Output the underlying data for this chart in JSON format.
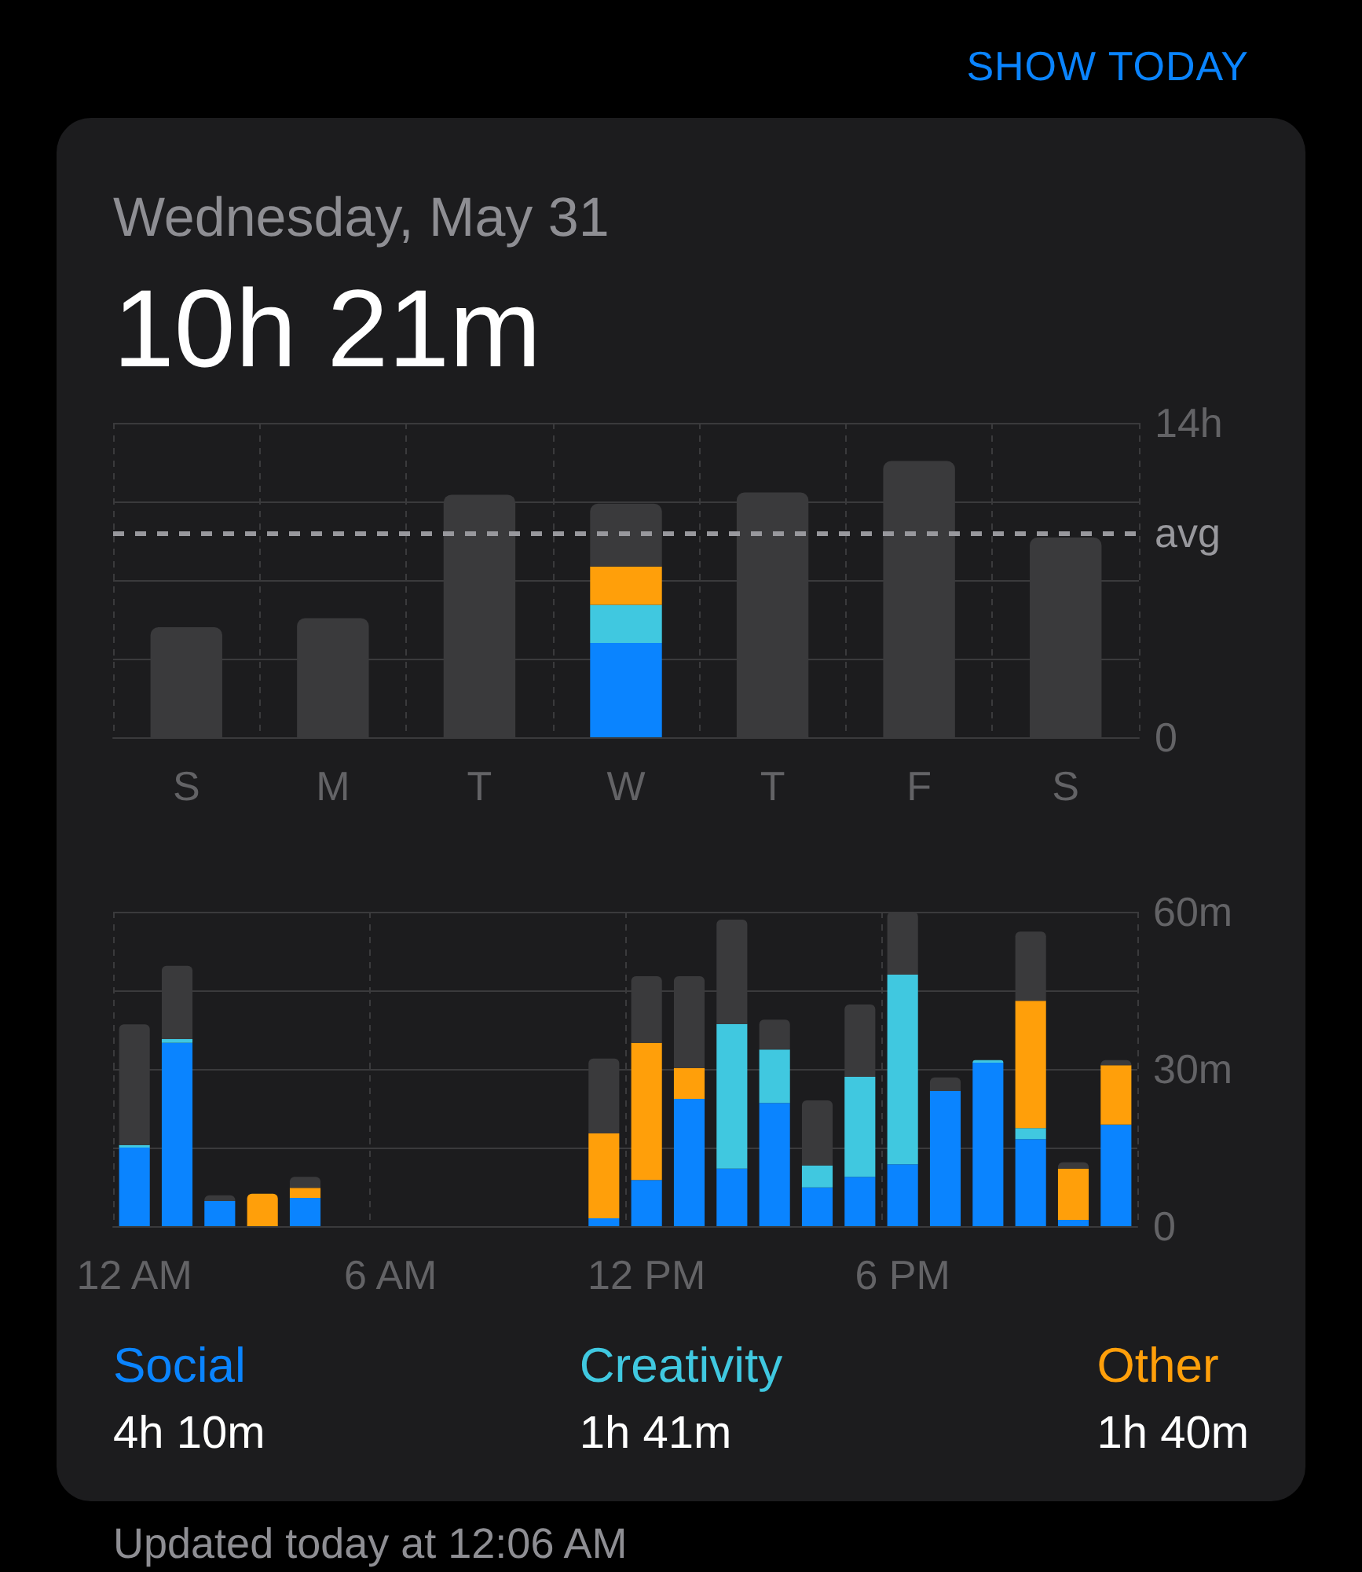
{
  "chart_data": [
    {
      "type": "bar",
      "stacked": true,
      "title": "Wednesday, May 31",
      "subtitle": "10h 21m",
      "annotations": [
        "SHOW TODAY"
      ],
      "categories": [
        "S",
        "M",
        "T",
        "W",
        "T",
        "F",
        "S"
      ],
      "series": [
        {
          "color": "#0a84ff",
          "values": [
            null,
            null,
            null,
            4.2,
            null,
            null,
            null
          ]
        },
        {
          "color": "#40c8e0",
          "values": [
            null,
            null,
            null,
            1.7,
            null,
            null,
            null
          ]
        },
        {
          "color": "#ff9f0a",
          "values": [
            null,
            null,
            null,
            1.7,
            null,
            null,
            null
          ]
        },
        {
          "color": "#3a3a3c",
          "values": [
            4.9,
            5.3,
            10.8,
            2.8,
            10.9,
            12.3,
            8.9
          ]
        }
      ],
      "ylim": [
        0,
        14
      ],
      "yticks": [
        0,
        {
          "value": 3.5,
          "label": null
        },
        {
          "value": 7,
          "label": null
        },
        {
          "value": 10.5,
          "label": null
        },
        {
          "value": 14,
          "label": "14h"
        }
      ],
      "ref_lines": [
        {
          "axis": "y",
          "value": 9.1,
          "label": "avg",
          "color": "#98989d",
          "line_style": "dashed"
        }
      ],
      "grid": true
    },
    {
      "type": "bar",
      "stacked": true,
      "categories": [
        "12 AM",
        null,
        null,
        null,
        null,
        null,
        "6 AM",
        null,
        null,
        null,
        null,
        null,
        "12 PM",
        null,
        null,
        null,
        null,
        null,
        "6 PM",
        null,
        null,
        null,
        null,
        null
      ],
      "series": [
        {
          "name": "Social",
          "color": "#0a84ff",
          "values": [
            15,
            35,
            4.8,
            null,
            5.4,
            null,
            null,
            null,
            null,
            null,
            null,
            1.5,
            8.8,
            24.3,
            11,
            23.5,
            7.4,
            9.4,
            11.8,
            25.8,
            31.2,
            16.6,
            1.2,
            19.4
          ]
        },
        {
          "name": "Creativity",
          "color": "#40c8e0",
          "values": [
            0.5,
            0.7,
            null,
            null,
            null,
            null,
            null,
            null,
            null,
            null,
            null,
            null,
            null,
            null,
            27.6,
            10.2,
            4.2,
            19.1,
            36.2,
            null,
            0.5,
            2.1,
            null,
            null
          ]
        },
        {
          "name": "Other",
          "color": "#ff9f0a",
          "values": [
            null,
            null,
            null,
            6.2,
            1.9,
            null,
            null,
            null,
            null,
            null,
            null,
            16.2,
            26.2,
            5.9,
            null,
            null,
            null,
            null,
            null,
            null,
            null,
            24.3,
            9.8,
            11.3
          ]
        },
        {
          "color": "#3a3a3c",
          "values": [
            23,
            14,
            1.1,
            null,
            2.1,
            null,
            null,
            null,
            null,
            null,
            null,
            14.3,
            12.7,
            17.5,
            19.9,
            5.7,
            12.4,
            13.8,
            12,
            2.6,
            null,
            13.2,
            1.2,
            1
          ]
        }
      ],
      "ylim": [
        0,
        60
      ],
      "yticks": [
        0,
        {
          "value": 15,
          "label": null
        },
        {
          "value": 30,
          "label": "30m"
        },
        {
          "value": 45,
          "label": null
        },
        {
          "value": 60,
          "label": "60m"
        }
      ],
      "grid": true,
      "annotations": [
        "4h 10m",
        "1h 41m",
        "1h 40m",
        "Updated today at 12:06 AM"
      ]
    }
  ]
}
